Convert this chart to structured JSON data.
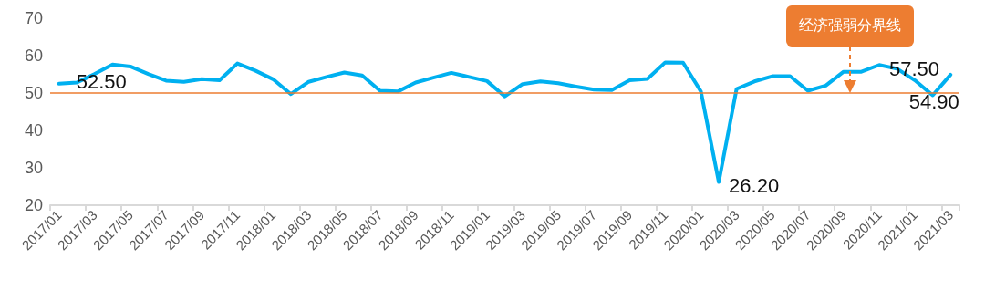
{
  "chart_data": {
    "type": "line",
    "categories": [
      "2017/01",
      null,
      "2017/03",
      null,
      "2017/05",
      null,
      "2017/07",
      null,
      "2017/09",
      null,
      "2017/11",
      null,
      "2018/01",
      null,
      "2018/03",
      null,
      "2018/05",
      null,
      "2018/07",
      null,
      "2018/09",
      null,
      "2018/11",
      null,
      "2019/01",
      null,
      "2019/03",
      null,
      "2019/05",
      null,
      "2019/07",
      null,
      "2019/09",
      null,
      "2019/11",
      null,
      "2020/01",
      null,
      "2020/03",
      null,
      "2020/05",
      null,
      "2020/07",
      null,
      "2020/09",
      null,
      "2020/11",
      null,
      "2021/01",
      null,
      "2021/03"
    ],
    "series": [
      {
        "color": "#00b0f0",
        "values": [
          52.5,
          52.8,
          55.1,
          57.6,
          57.1,
          55.1,
          53.3,
          53.0,
          53.7,
          53.4,
          57.9,
          56.0,
          53.7,
          49.7,
          53.0,
          54.3,
          55.5,
          54.7,
          50.6,
          50.4,
          52.8,
          54.1,
          55.4,
          54.3,
          53.2,
          49.1,
          52.4,
          53.1,
          52.6,
          51.7,
          50.9,
          50.8,
          53.4,
          53.8,
          58.2,
          58.1,
          50.4,
          26.2,
          51.1,
          53.1,
          54.5,
          54.5,
          50.6,
          52.0,
          55.7,
          55.7,
          57.5,
          56.5,
          53.4,
          49.4,
          54.9
        ],
        "value_labels": [
          "52.50",
          null,
          null,
          null,
          null,
          null,
          null,
          null,
          null,
          null,
          null,
          null,
          null,
          null,
          null,
          null,
          null,
          null,
          null,
          null,
          null,
          null,
          null,
          null,
          null,
          null,
          null,
          null,
          null,
          null,
          null,
          null,
          null,
          null,
          null,
          null,
          null,
          "26.20",
          null,
          null,
          null,
          null,
          null,
          null,
          null,
          null,
          "57.50",
          null,
          null,
          null,
          "54.90"
        ]
      }
    ],
    "ylim": [
      20,
      70
    ],
    "yticks": [
      20,
      30,
      40,
      50,
      60,
      70
    ],
    "ref_lines": [
      {
        "axis": "y",
        "value": 50,
        "color": "#ed7d31"
      }
    ],
    "annotations": [
      "经济强弱分界线"
    ],
    "grid": false,
    "marker": "none",
    "line_style": "solid"
  }
}
